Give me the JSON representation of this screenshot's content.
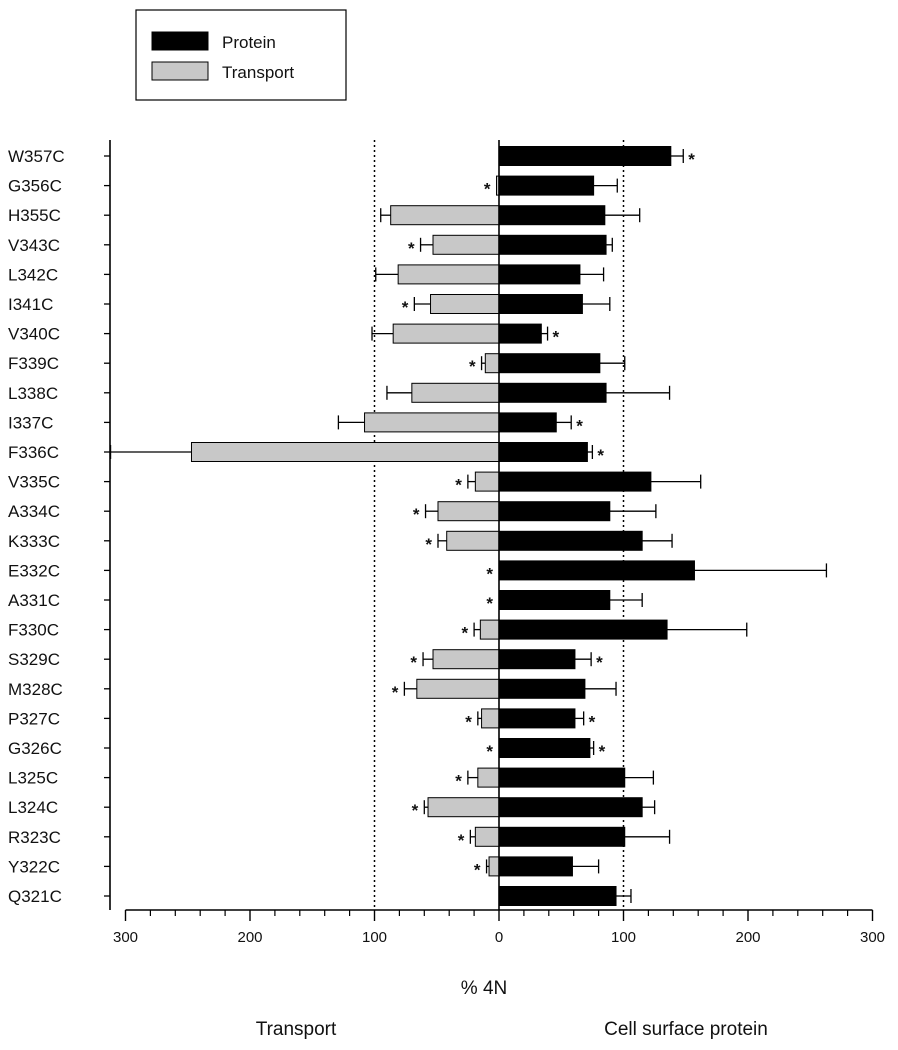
{
  "chart_data": {
    "type": "bar",
    "orientation": "horizontal-diverging",
    "categories": [
      "W357C",
      "G356C",
      "H355C",
      "V343C",
      "L342C",
      "I341C",
      "V340C",
      "F339C",
      "L338C",
      "I337C",
      "F336C",
      "V335C",
      "A334C",
      "K333C",
      "E332C",
      "A331C",
      "F330C",
      "S329C",
      "M328C",
      "P327C",
      "G326C",
      "L325C",
      "L324C",
      "R323C",
      "Y322C",
      "Q321C"
    ],
    "series": [
      {
        "name": "Protein",
        "color": "#000000",
        "direction": "right",
        "values": [
          138,
          76,
          85,
          86,
          65,
          67,
          34,
          81,
          86,
          46,
          71,
          122,
          89,
          115,
          157,
          89,
          135,
          61,
          69,
          61,
          73,
          101,
          115,
          101,
          59,
          94
        ],
        "errors": [
          10,
          19,
          28,
          5,
          19,
          22,
          5,
          20,
          51,
          12,
          4,
          40,
          37,
          24,
          106,
          26,
          64,
          13,
          25,
          7,
          3,
          23,
          10,
          36,
          21,
          12
        ],
        "significant": [
          true,
          false,
          false,
          false,
          false,
          false,
          true,
          false,
          false,
          true,
          true,
          false,
          false,
          false,
          false,
          false,
          false,
          true,
          false,
          true,
          true,
          false,
          false,
          false,
          false,
          false
        ]
      },
      {
        "name": "Transport",
        "color": "#c8c8c8",
        "direction": "left",
        "values": [
          0,
          2,
          87,
          53,
          81,
          55,
          85,
          11,
          70,
          108,
          247,
          19,
          49,
          42,
          0,
          0,
          15,
          53,
          66,
          14,
          0,
          17,
          57,
          19,
          8,
          0
        ],
        "errors": [
          0,
          0,
          8,
          10,
          18,
          13,
          17,
          3,
          20,
          21,
          65,
          6,
          10,
          7,
          0,
          0,
          5,
          8,
          10,
          3,
          0,
          8,
          3,
          4,
          2,
          0
        ],
        "significant": [
          false,
          true,
          false,
          true,
          false,
          true,
          false,
          true,
          false,
          false,
          false,
          true,
          true,
          true,
          true,
          true,
          true,
          true,
          true,
          true,
          true,
          true,
          true,
          true,
          true,
          false
        ]
      }
    ],
    "xlim": [
      -300,
      300
    ],
    "x_ticks": [
      -300,
      -200,
      -100,
      0,
      100,
      200,
      300
    ],
    "x_tick_labels": [
      "300",
      "200",
      "100",
      "0",
      "100",
      "200",
      "300"
    ],
    "reference_lines": [
      -100,
      100
    ],
    "xlabel": "% 4N",
    "left_label": "Transport",
    "right_label": "Cell surface protein",
    "significance_marker": "*",
    "legend": {
      "placement": "top-left",
      "entries": [
        {
          "label": "Protein",
          "color": "#000000"
        },
        {
          "label": "Transport",
          "color": "#c8c8c8"
        }
      ]
    },
    "grid": false
  }
}
